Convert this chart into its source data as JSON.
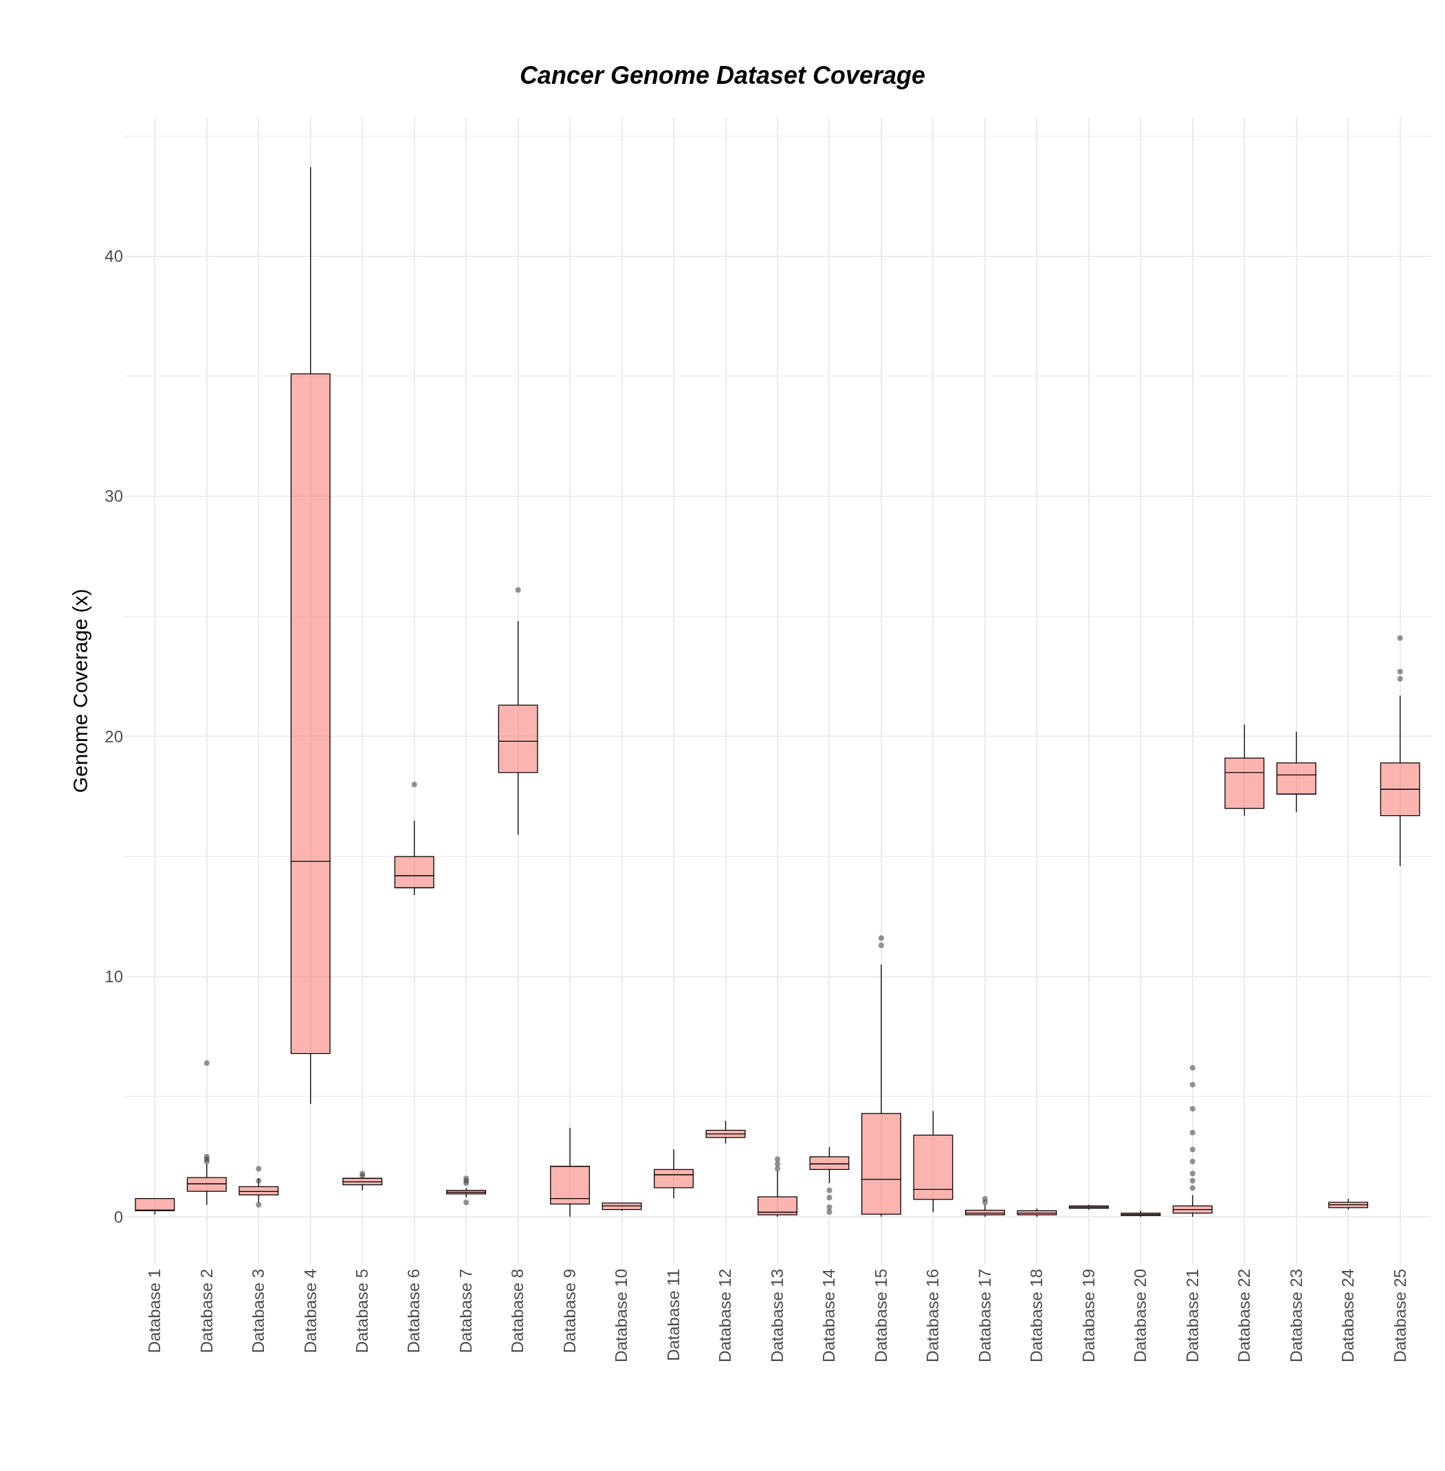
{
  "chart_data": {
    "type": "box",
    "title": "Cancer Genome Dataset Coverage",
    "ylabel": "Genome Coverage (x)",
    "categories": [
      "Database 1",
      "Database 2",
      "Database 3",
      "Database 4",
      "Database 5",
      "Database 6",
      "Database 7",
      "Database 8",
      "Database 9",
      "Database 10",
      "Database 11",
      "Database 12",
      "Database 13",
      "Database 14",
      "Database 15",
      "Database 16",
      "Database 17",
      "Database 18",
      "Database 19",
      "Database 20",
      "Database 21",
      "Database 22",
      "Database 23",
      "Database 24",
      "Database 25"
    ],
    "color": "#f8766d",
    "boxes": [
      {
        "low": 0.1,
        "q1": 0.25,
        "median": 0.27,
        "q3": 0.76,
        "high": 0.76
      },
      {
        "low": 0.5,
        "q1": 1.06,
        "median": 1.37,
        "q3": 1.63,
        "high": 2.2,
        "outliers": [
          2.3,
          2.4,
          2.5,
          6.4
        ]
      },
      {
        "low": 0.6,
        "q1": 0.91,
        "median": 1.05,
        "q3": 1.25,
        "high": 1.6,
        "outliers": [
          0.5,
          1.5,
          2.0
        ]
      },
      {
        "low": 4.7,
        "q1": 6.8,
        "median": 14.8,
        "q3": 35.1,
        "high": 43.7
      },
      {
        "low": 1.1,
        "q1": 1.33,
        "median": 1.45,
        "q3": 1.6,
        "high": 1.65,
        "outliers": [
          1.7,
          1.8
        ]
      },
      {
        "low": 13.4,
        "q1": 13.7,
        "median": 14.2,
        "q3": 15.0,
        "high": 16.5,
        "outliers": [
          18.0
        ]
      },
      {
        "low": 0.8,
        "q1": 0.95,
        "median": 1.02,
        "q3": 1.1,
        "high": 1.2,
        "outliers": [
          0.6,
          1.4,
          1.5,
          1.6
        ]
      },
      {
        "low": 15.9,
        "q1": 18.5,
        "median": 19.8,
        "q3": 21.3,
        "high": 24.8,
        "outliers": [
          26.1
        ]
      },
      {
        "low": 0.0,
        "q1": 0.53,
        "median": 0.76,
        "q3": 2.1,
        "high": 3.7
      },
      {
        "low": 0.25,
        "q1": 0.3,
        "median": 0.45,
        "q3": 0.57,
        "high": 0.57
      },
      {
        "low": 0.76,
        "q1": 1.21,
        "median": 1.75,
        "q3": 1.97,
        "high": 2.8
      },
      {
        "low": 3.05,
        "q1": 3.3,
        "median": 3.45,
        "q3": 3.6,
        "high": 4.0
      },
      {
        "low": 0.0,
        "q1": 0.08,
        "median": 0.19,
        "q3": 0.83,
        "high": 1.9,
        "outliers": [
          2.0,
          2.2,
          2.4
        ]
      },
      {
        "low": 1.4,
        "q1": 1.97,
        "median": 2.2,
        "q3": 2.5,
        "high": 2.9,
        "outliers": [
          0.2,
          0.4,
          0.8,
          1.1
        ]
      },
      {
        "low": 0.0,
        "q1": 0.11,
        "median": 1.56,
        "q3": 4.3,
        "high": 10.5,
        "outliers": [
          11.3,
          11.6
        ]
      },
      {
        "low": 0.2,
        "q1": 0.72,
        "median": 1.14,
        "q3": 3.4,
        "high": 4.4
      },
      {
        "low": 0.0,
        "q1": 0.08,
        "median": 0.15,
        "q3": 0.27,
        "high": 0.5,
        "outliers": [
          0.6,
          0.75
        ]
      },
      {
        "low": 0.0,
        "q1": 0.08,
        "median": 0.15,
        "q3": 0.25,
        "high": 0.35
      },
      {
        "low": 0.3,
        "q1": 0.35,
        "median": 0.4,
        "q3": 0.45,
        "high": 0.5
      },
      {
        "low": 0.0,
        "q1": 0.05,
        "median": 0.1,
        "q3": 0.15,
        "high": 0.25
      },
      {
        "low": 0.0,
        "q1": 0.15,
        "median": 0.3,
        "q3": 0.45,
        "high": 0.9,
        "outliers": [
          1.2,
          1.5,
          1.8,
          2.3,
          2.8,
          3.5,
          4.5,
          5.5,
          6.2
        ]
      },
      {
        "low": 16.7,
        "q1": 17.0,
        "median": 18.5,
        "q3": 19.1,
        "high": 20.5
      },
      {
        "low": 16.85,
        "q1": 17.6,
        "median": 18.4,
        "q3": 18.9,
        "high": 20.2
      },
      {
        "low": 0.3,
        "q1": 0.38,
        "median": 0.5,
        "q3": 0.6,
        "high": 0.75
      },
      {
        "low": 14.6,
        "q1": 16.7,
        "median": 17.8,
        "q3": 18.9,
        "high": 21.7,
        "outliers": [
          22.4,
          22.7,
          24.1
        ]
      }
    ],
    "ylim": [
      -2,
      45.8
    ],
    "yticks": [
      0,
      10,
      20,
      30,
      40
    ],
    "grid": true
  }
}
